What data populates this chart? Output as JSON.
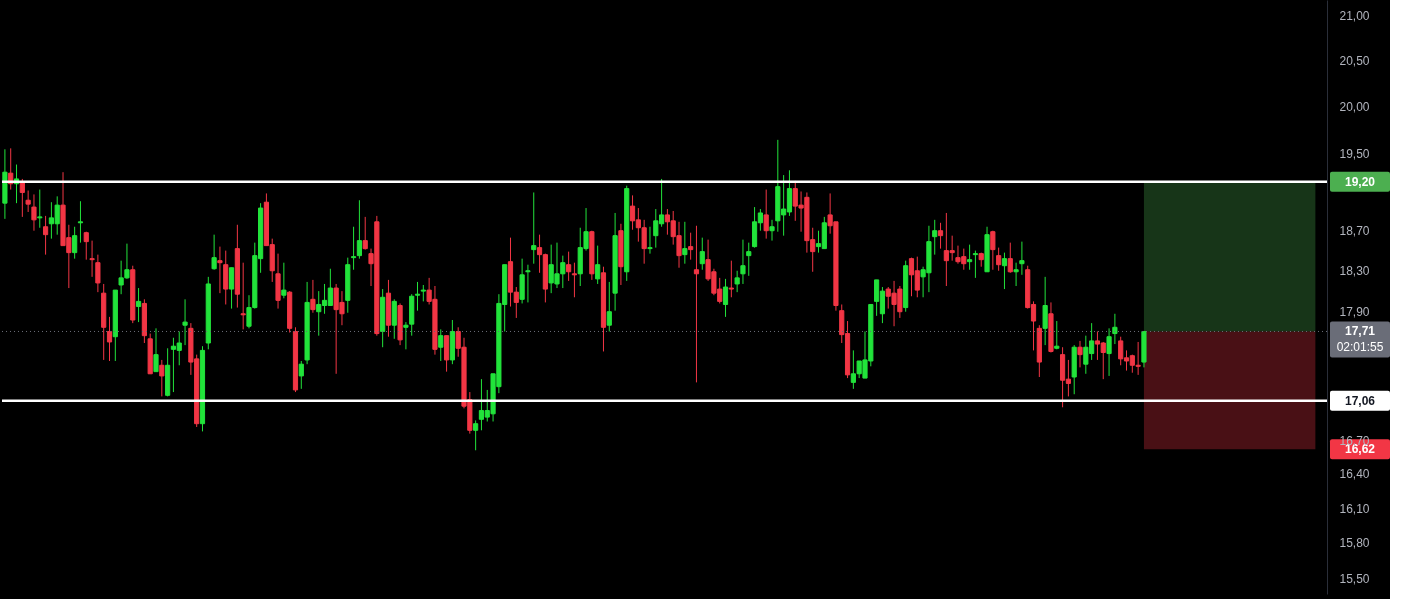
{
  "chart_data": {
    "type": "candlestick",
    "log": true,
    "colors": [
      "#22e33b",
      "#f23645",
      "#22e33b",
      "#f23645",
      "#f23645",
      "#f23645",
      "#22e33b",
      "#f23645",
      "#22e33b",
      "#22e33b",
      "#f23645",
      "#f23645",
      "#22e33b",
      "#22e33b",
      "#f23645",
      "#f23645",
      "#f23645",
      "#f23645",
      "#f23645",
      "#22e33b",
      "#22e33b",
      "#22e33b",
      "#f23645",
      "#22e33b",
      "#f23645",
      "#f23645",
      "#22e33b",
      "#f23645",
      "#22e33b",
      "#22e33b",
      "#22e33b",
      "#22e33b",
      "#f23645",
      "#f23645",
      "#22e33b",
      "#22e33b",
      "#22e33b",
      "#f23645",
      "#f23645",
      "#22e33b",
      "#f23645",
      "#f23645",
      "#22e33b",
      "#22e33b",
      "#22e33b",
      "#f23645",
      "#f23645",
      "#f23645",
      "#22e33b",
      "#f23645",
      "#f23645",
      "#22e33b",
      "#22e33b",
      "#f23645",
      "#22e33b",
      "#22e33b",
      "#22e33b",
      "#f23645",
      "#f23645",
      "#22e33b",
      "#22e33b",
      "#22e33b",
      "#f23645",
      "#f23645",
      "#f23645",
      "#22e33b",
      "#f23645",
      "#22e33b",
      "#f23645",
      "#22e33b",
      "#22e33b",
      "#22e33b",
      "#22e33b",
      "#f23645",
      "#f23645",
      "#22e33b",
      "#f23645",
      "#22e33b",
      "#f23645",
      "#f23645",
      "#f23645",
      "#22e33b",
      "#22e33b",
      "#22e33b",
      "#22e33b",
      "#22e33b",
      "#22e33b",
      "#f23645",
      "#f23645",
      "#22e33b",
      "#22e33b",
      "#22e33b",
      "#f23645",
      "#f23645",
      "#22e33b",
      "#22e33b",
      "#22e33b",
      "#f23645",
      "#f23645",
      "#22e33b",
      "#22e33b",
      "#f23645",
      "#22e33b",
      "#f23645",
      "#22e33b",
      "#22e33b",
      "#f23645",
      "#22e33b",
      "#f23645",
      "#f23645",
      "#f23645",
      "#22e33b",
      "#22e33b",
      "#22e33b",
      "#f23645",
      "#f23645",
      "#f23645",
      "#22e33b",
      "#f23645",
      "#f23645",
      "#22e33b",
      "#f23645",
      "#f23645",
      "#f23645",
      "#22e33b",
      "#f23645",
      "#22e33b",
      "#22e33b",
      "#22e33b",
      "#22e33b",
      "#22e33b",
      "#f23645",
      "#22e33b",
      "#22e33b",
      "#22e33b",
      "#22e33b",
      "#f23645",
      "#f23645",
      "#f23645",
      "#f23645",
      "#22e33b",
      "#22e33b",
      "#f23645",
      "#f23645",
      "#f23645",
      "#f23645",
      "#22e33b",
      "#22e33b",
      "#22e33b",
      "#22e33b",
      "#22e33b",
      "#22e33b",
      "#f23645",
      "#f23645",
      "#f23645",
      "#22e33b",
      "#f23645",
      "#f23645",
      "#22e33b",
      "#22e33b",
      "#22e33b",
      "#f23645",
      "#f23645",
      "#f23645",
      "#f23645",
      "#f23645",
      "#22e33b",
      "#22e33b",
      "#f23645",
      "#22e33b",
      "#f23645",
      "#f23645",
      "#22e33b",
      "#f23645",
      "#22e33b",
      "#22e33b",
      "#f23645",
      "#f23645",
      "#f23645",
      "#22e33b",
      "#f23645",
      "#22e33b",
      "#f23645",
      "#f23645",
      "#22e33b",
      "#f23645",
      "#22e33b",
      "#22e33b",
      "#f23645",
      "#f23645",
      "#22e33b",
      "#22e33b",
      "#f23645",
      "#f23645",
      "#f23645",
      "#f23645",
      "#22e33b",
      null,
      null,
      null,
      null,
      null,
      null,
      null,
      null,
      null,
      null,
      null,
      null,
      null,
      null,
      null,
      null,
      null,
      null,
      null,
      null,
      null,
      null,
      null,
      null,
      null,
      null,
      null,
      null,
      null,
      null,
      null
    ],
    "ylim": [
      15.37,
      21.18
    ],
    "yticks": [
      {
        "value": 15.5,
        "label": "15,50"
      },
      {
        "value": 15.8,
        "label": "15,80"
      },
      {
        "value": 16.1,
        "label": "16,10"
      },
      {
        "value": 16.4,
        "label": "16,40"
      },
      {
        "value": 16.7,
        "label": "16,70"
      },
      {
        "value": 17.9,
        "label": "17,90"
      },
      {
        "value": 18.3,
        "label": "18,30"
      },
      {
        "value": 18.7,
        "label": "18,70"
      },
      {
        "value": 19.5,
        "label": "19,50"
      },
      {
        "value": 20.0,
        "label": "20,00"
      },
      {
        "value": 20.5,
        "label": "20,50"
      },
      {
        "value": 21.0,
        "label": "21,00"
      }
    ],
    "ref_lines": [
      {
        "axis": "y",
        "value": 19.2,
        "label": null,
        "color": "#ffffff"
      },
      {
        "axis": "y",
        "value": 17.06,
        "label": "17,06",
        "color": "#ffffff"
      },
      {
        "axis": "y",
        "value": 17.71,
        "label": "17,71",
        "color": "#6a6d78",
        "line_style": "dotted"
      }
    ],
    "bands": [
      {
        "axis": "y",
        "from": 17.71,
        "to": 19.2,
        "label": "19,20",
        "color": "#4caf50"
      },
      {
        "axis": "y",
        "from": 17.71,
        "to": 16.62,
        "label": "16,62",
        "color": "#f23645"
      }
    ],
    "annotations": [
      "02:01:55"
    ],
    "categories": [
      null,
      null,
      null,
      null,
      null,
      null,
      null,
      null,
      null,
      null,
      null,
      null,
      null,
      null,
      null,
      null,
      null,
      null,
      null,
      null,
      null,
      null,
      null,
      null,
      null,
      null,
      null,
      null,
      null,
      null,
      null,
      null,
      null,
      null,
      null,
      null,
      null,
      null,
      null,
      null,
      null,
      null,
      null,
      null,
      null,
      null,
      null,
      null,
      null,
      null,
      null,
      null,
      null,
      null,
      null,
      null,
      null,
      null,
      null,
      null,
      null,
      null,
      null,
      null,
      null,
      null,
      null,
      null,
      null,
      null,
      null,
      null,
      null,
      null,
      null,
      null,
      null,
      null,
      null,
      null,
      null,
      null,
      null,
      null,
      null,
      null,
      null,
      null,
      null,
      null,
      null,
      null,
      null,
      null,
      null,
      null,
      null,
      null,
      null,
      null,
      null,
      null,
      null,
      null,
      null,
      null,
      null,
      null,
      null,
      null,
      null,
      null,
      null,
      null,
      null,
      null,
      null,
      null,
      null,
      null,
      null,
      null,
      null,
      null,
      null,
      null,
      null,
      null,
      null,
      null,
      null,
      null,
      null,
      null,
      null,
      null,
      null,
      null,
      null,
      null,
      null,
      null,
      null,
      null,
      null,
      null,
      null,
      null,
      null,
      null,
      null,
      null,
      null,
      null,
      null,
      null,
      null,
      null,
      null,
      null,
      null,
      null,
      null,
      null,
      null,
      null,
      null,
      null,
      null,
      null,
      null,
      null,
      null,
      null,
      null,
      null,
      null,
      null,
      null,
      null,
      null,
      null,
      null,
      null,
      null,
      null,
      null,
      null,
      null,
      null,
      null,
      null,
      null,
      null,
      null,
      null,
      null,
      null,
      null,
      null,
      null,
      null,
      null,
      null,
      null,
      null,
      null,
      null,
      null,
      null,
      null,
      null,
      null,
      null,
      null,
      null,
      null,
      null,
      null,
      null,
      null,
      null,
      null,
      null,
      null,
      null,
      null,
      null
    ],
    "ohlc": [
      [
        18.98,
        19.54,
        18.82,
        19.3
      ],
      [
        19.29,
        19.55,
        19.12,
        19.18
      ],
      [
        19.18,
        19.38,
        18.98,
        19.23
      ],
      [
        19.19,
        19.23,
        18.84,
        19.09
      ],
      [
        19.01,
        19.11,
        18.89,
        18.97
      ],
      [
        18.94,
        19.07,
        18.7,
        18.81
      ],
      [
        18.83,
        19.12,
        18.73,
        18.84
      ],
      [
        18.74,
        18.85,
        18.46,
        18.66
      ],
      [
        18.77,
        18.99,
        18.62,
        18.83
      ],
      [
        18.77,
        19.05,
        18.66,
        18.96
      ],
      [
        18.96,
        19.3,
        18.55,
        18.55
      ],
      [
        18.63,
        18.76,
        18.13,
        18.48
      ],
      [
        18.48,
        18.74,
        18.42,
        18.65
      ],
      [
        18.78,
        19.0,
        18.58,
        18.79
      ],
      [
        18.68,
        18.69,
        18.41,
        18.59
      ],
      [
        18.42,
        18.6,
        18.24,
        18.41
      ],
      [
        18.38,
        18.46,
        18.09,
        18.18
      ],
      [
        18.08,
        18.17,
        17.44,
        17.75
      ],
      [
        17.71,
        17.85,
        17.43,
        17.61
      ],
      [
        17.66,
        18.11,
        17.43,
        18.11
      ],
      [
        18.16,
        18.4,
        18.07,
        18.23
      ],
      [
        18.23,
        18.57,
        18.22,
        18.31
      ],
      [
        18.31,
        18.35,
        17.79,
        17.82
      ],
      [
        17.95,
        18.13,
        17.8,
        18.0
      ],
      [
        17.98,
        18.02,
        17.6,
        17.67
      ],
      [
        17.64,
        17.69,
        17.31,
        17.31
      ],
      [
        17.33,
        17.74,
        17.33,
        17.49
      ],
      [
        17.39,
        17.44,
        17.1,
        17.29
      ],
      [
        17.11,
        17.55,
        17.1,
        17.39
      ],
      [
        17.54,
        17.65,
        17.14,
        17.57
      ],
      [
        17.53,
        17.71,
        17.39,
        17.6
      ],
      [
        17.77,
        18.02,
        17.58,
        17.8
      ],
      [
        17.74,
        17.79,
        17.3,
        17.42
      ],
      [
        17.45,
        17.49,
        16.82,
        16.85
      ],
      [
        16.85,
        17.57,
        16.78,
        17.53
      ],
      [
        17.6,
        18.24,
        17.54,
        18.17
      ],
      [
        18.32,
        18.66,
        18.31,
        18.43
      ],
      [
        18.4,
        18.54,
        18.08,
        18.38
      ],
      [
        18.36,
        18.5,
        17.97,
        18.12
      ],
      [
        18.12,
        18.33,
        17.93,
        18.33
      ],
      [
        18.52,
        18.76,
        17.94,
        18.07
      ],
      [
        17.88,
        18.38,
        17.73,
        17.87
      ],
      [
        17.76,
        18.06,
        17.74,
        17.94
      ],
      [
        17.94,
        18.58,
        17.93,
        18.45
      ],
      [
        18.42,
        18.98,
        18.28,
        18.93
      ],
      [
        18.99,
        19.08,
        18.55,
        18.55
      ],
      [
        18.56,
        18.62,
        18.19,
        18.3
      ],
      [
        18.27,
        18.47,
        17.93,
        18.01
      ],
      [
        18.06,
        18.38,
        18.03,
        18.11
      ],
      [
        18.09,
        18.1,
        17.7,
        17.74
      ],
      [
        17.71,
        17.75,
        17.14,
        17.16
      ],
      [
        17.29,
        17.43,
        17.17,
        17.4
      ],
      [
        17.44,
        18.19,
        17.4,
        17.99
      ],
      [
        18.02,
        18.21,
        17.89,
        17.92
      ],
      [
        17.9,
        18.1,
        17.67,
        17.97
      ],
      [
        17.96,
        18.17,
        17.88,
        18.01
      ],
      [
        17.96,
        18.32,
        17.96,
        18.13
      ],
      [
        18.13,
        18.17,
        17.31,
        17.92
      ],
      [
        17.99,
        18.1,
        17.77,
        17.88
      ],
      [
        18.01,
        18.43,
        17.89,
        18.36
      ],
      [
        18.43,
        18.74,
        18.31,
        18.44
      ],
      [
        18.45,
        19.01,
        18.42,
        18.6
      ],
      [
        18.6,
        18.84,
        18.51,
        18.52
      ],
      [
        18.47,
        18.52,
        18.15,
        18.37
      ],
      [
        18.79,
        18.85,
        17.67,
        17.69
      ],
      [
        17.71,
        18.12,
        17.56,
        18.04
      ],
      [
        18.08,
        18.21,
        17.66,
        17.77
      ],
      [
        17.77,
        18.02,
        17.64,
        18.0
      ],
      [
        17.96,
        17.98,
        17.58,
        17.63
      ],
      [
        17.75,
        17.8,
        17.54,
        17.77
      ],
      [
        17.78,
        18.07,
        17.67,
        18.05
      ],
      [
        18.06,
        18.19,
        17.91,
        18.07
      ],
      [
        18.1,
        18.16,
        18.0,
        18.11
      ],
      [
        18.11,
        18.23,
        17.97,
        18.0
      ],
      [
        18.02,
        18.15,
        17.49,
        17.54
      ],
      [
        17.56,
        17.73,
        17.43,
        17.67
      ],
      [
        17.67,
        17.67,
        17.33,
        17.44
      ],
      [
        17.44,
        17.82,
        17.4,
        17.71
      ],
      [
        17.71,
        17.75,
        17.47,
        17.55
      ],
      [
        17.56,
        17.65,
        16.99,
        17.01
      ],
      [
        17.07,
        17.14,
        16.76,
        16.79
      ],
      [
        16.79,
        16.88,
        16.61,
        16.85
      ],
      [
        16.89,
        17.26,
        16.79,
        16.97
      ],
      [
        16.91,
        17.16,
        16.87,
        16.97
      ],
      [
        16.94,
        17.31,
        16.87,
        17.31
      ],
      [
        17.19,
        18.07,
        17.13,
        17.98
      ],
      [
        17.97,
        18.36,
        17.71,
        18.36
      ],
      [
        18.39,
        18.63,
        17.95,
        18.09
      ],
      [
        18.09,
        18.14,
        17.84,
        17.99
      ],
      [
        18.02,
        18.42,
        17.98,
        18.26
      ],
      [
        18.29,
        18.36,
        17.99,
        18.3
      ],
      [
        18.51,
        19.09,
        18.37,
        18.55
      ],
      [
        18.53,
        18.66,
        18.28,
        18.46
      ],
      [
        18.46,
        18.47,
        17.99,
        18.12
      ],
      [
        18.18,
        18.56,
        18.08,
        18.36
      ],
      [
        18.17,
        18.58,
        18.13,
        18.27
      ],
      [
        18.27,
        18.45,
        18.13,
        18.38
      ],
      [
        18.36,
        18.49,
        18.2,
        18.29
      ],
      [
        18.27,
        18.38,
        18.04,
        18.26
      ],
      [
        18.27,
        18.73,
        18.15,
        18.53
      ],
      [
        18.52,
        18.93,
        18.5,
        18.69
      ],
      [
        18.69,
        18.7,
        18.21,
        18.27
      ],
      [
        18.22,
        18.55,
        18.17,
        18.36
      ],
      [
        18.28,
        18.34,
        17.52,
        17.75
      ],
      [
        17.77,
        18.19,
        17.71,
        17.9
      ],
      [
        18.08,
        18.88,
        17.91,
        18.65
      ],
      [
        18.7,
        18.77,
        18.16,
        18.34
      ],
      [
        18.29,
        19.16,
        18.2,
        19.13
      ],
      [
        18.95,
        19.06,
        18.71,
        18.8
      ],
      [
        18.81,
        18.93,
        18.59,
        18.73
      ],
      [
        18.73,
        18.81,
        18.37,
        18.52
      ],
      [
        18.52,
        18.74,
        18.47,
        18.53
      ],
      [
        18.65,
        18.92,
        18.53,
        18.8
      ],
      [
        18.77,
        19.23,
        18.74,
        18.86
      ],
      [
        18.86,
        18.92,
        18.66,
        18.79
      ],
      [
        18.8,
        18.9,
        18.56,
        18.64
      ],
      [
        18.65,
        18.79,
        18.33,
        18.45
      ],
      [
        18.46,
        18.79,
        18.37,
        18.52
      ],
      [
        18.54,
        18.68,
        18.41,
        18.51
      ],
      [
        18.31,
        18.75,
        17.23,
        18.27
      ],
      [
        18.37,
        18.63,
        18.31,
        18.49
      ],
      [
        18.41,
        18.61,
        18.2,
        18.22
      ],
      [
        18.29,
        18.32,
        18.06,
        18.08
      ],
      [
        18.12,
        18.23,
        17.98,
        18.0
      ],
      [
        17.97,
        18.22,
        17.85,
        18.14
      ],
      [
        18.13,
        18.4,
        18.04,
        18.12
      ],
      [
        18.17,
        18.3,
        18.09,
        18.23
      ],
      [
        18.27,
        18.61,
        18.17,
        18.35
      ],
      [
        18.45,
        18.58,
        18.25,
        18.49
      ],
      [
        18.54,
        18.94,
        18.53,
        18.79
      ],
      [
        18.78,
        18.92,
        18.7,
        18.88
      ],
      [
        18.86,
        19.12,
        18.62,
        18.7
      ],
      [
        18.7,
        18.81,
        18.6,
        18.74
      ],
      [
        18.8,
        19.64,
        18.69,
        19.15
      ],
      [
        18.86,
        19.27,
        18.65,
        18.92
      ],
      [
        18.89,
        19.32,
        18.85,
        19.13
      ],
      [
        19.13,
        19.21,
        18.8,
        18.95
      ],
      [
        18.96,
        19.1,
        18.69,
        18.93
      ],
      [
        19.04,
        19.09,
        18.48,
        18.6
      ],
      [
        18.61,
        18.73,
        18.29,
        18.49
      ],
      [
        18.54,
        18.7,
        18.48,
        18.57
      ],
      [
        18.52,
        18.84,
        18.52,
        18.78
      ],
      [
        18.86,
        19.08,
        18.67,
        18.75
      ],
      [
        18.79,
        18.79,
        17.91,
        17.96
      ],
      [
        17.91,
        17.97,
        17.6,
        17.68
      ],
      [
        17.69,
        17.81,
        17.27,
        17.3
      ],
      [
        17.23,
        17.53,
        17.17,
        17.31
      ],
      [
        17.31,
        17.43,
        17.27,
        17.43
      ],
      [
        17.27,
        17.71,
        17.27,
        17.44
      ],
      [
        17.43,
        17.97,
        17.38,
        17.97
      ],
      [
        18.0,
        18.21,
        17.86,
        18.21
      ],
      [
        17.88,
        18.14,
        17.79,
        18.1
      ],
      [
        18.12,
        18.14,
        17.93,
        18.05
      ],
      [
        18.08,
        18.2,
        17.76,
        17.97
      ],
      [
        18.12,
        18.15,
        17.84,
        17.9
      ],
      [
        17.94,
        18.4,
        17.9,
        18.35
      ],
      [
        18.42,
        18.43,
        18.05,
        18.26
      ],
      [
        18.3,
        18.44,
        18.04,
        18.11
      ],
      [
        18.24,
        18.34,
        18.04,
        18.31
      ],
      [
        18.28,
        18.75,
        18.09,
        18.59
      ],
      [
        18.64,
        18.81,
        18.46,
        18.7
      ],
      [
        18.7,
        18.78,
        18.52,
        18.65
      ],
      [
        18.5,
        18.88,
        18.15,
        18.4
      ],
      [
        18.5,
        18.65,
        18.4,
        18.48
      ],
      [
        18.43,
        18.55,
        18.37,
        18.39
      ],
      [
        18.44,
        18.52,
        18.31,
        18.37
      ],
      [
        18.39,
        18.56,
        18.31,
        18.41
      ],
      [
        18.46,
        18.5,
        18.23,
        18.47
      ],
      [
        18.47,
        18.48,
        18.34,
        18.41
      ],
      [
        18.29,
        18.74,
        18.29,
        18.66
      ],
      [
        18.69,
        18.7,
        18.31,
        18.51
      ],
      [
        18.45,
        18.53,
        18.3,
        18.36
      ],
      [
        18.35,
        18.48,
        18.12,
        18.42
      ],
      [
        18.42,
        18.58,
        18.28,
        18.29
      ],
      [
        18.29,
        18.38,
        18.15,
        18.31
      ],
      [
        18.37,
        18.59,
        18.26,
        18.4
      ],
      [
        18.31,
        18.35,
        17.93,
        17.94
      ],
      [
        17.97,
        18.0,
        17.53,
        17.81
      ],
      [
        17.74,
        17.77,
        17.28,
        17.42
      ],
      [
        17.74,
        18.24,
        17.58,
        17.96
      ],
      [
        17.88,
        17.99,
        17.51,
        17.52
      ],
      [
        17.55,
        17.81,
        17.54,
        17.57
      ],
      [
        17.49,
        17.56,
        17.0,
        17.25
      ],
      [
        17.26,
        17.44,
        17.1,
        17.22
      ],
      [
        17.28,
        17.58,
        17.12,
        17.56
      ],
      [
        17.56,
        17.62,
        17.37,
        17.49
      ],
      [
        17.4,
        17.67,
        17.31,
        17.56
      ],
      [
        17.5,
        17.79,
        17.44,
        17.62
      ],
      [
        17.62,
        17.71,
        17.44,
        17.59
      ],
      [
        17.6,
        17.61,
        17.26,
        17.51
      ],
      [
        17.5,
        17.74,
        17.29,
        17.66
      ],
      [
        17.69,
        17.88,
        17.59,
        17.75
      ],
      [
        17.62,
        17.66,
        17.39,
        17.45
      ],
      [
        17.46,
        17.53,
        17.34,
        17.43
      ],
      [
        17.48,
        17.49,
        17.32,
        17.39
      ],
      [
        17.39,
        17.61,
        17.3,
        17.38
      ],
      [
        17.42,
        17.71,
        17.37,
        17.71
      ],
      null,
      null,
      null,
      null,
      null,
      null,
      null,
      null,
      null,
      null,
      null,
      null,
      null,
      null,
      null,
      null,
      null,
      null,
      null,
      null,
      null,
      null,
      null,
      null,
      null,
      null,
      null,
      null,
      null,
      null,
      null
    ]
  }
}
